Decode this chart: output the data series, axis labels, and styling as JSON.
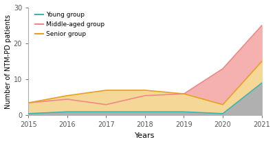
{
  "years": [
    2015,
    2016,
    2017,
    2018,
    2019,
    2020,
    2021
  ],
  "young": [
    0.5,
    1,
    1,
    1,
    1,
    0.5,
    9
  ],
  "middle_aged": [
    3.5,
    4.5,
    3,
    5.5,
    6,
    13,
    25
  ],
  "senior": [
    3.5,
    5.5,
    7,
    7,
    6,
    3,
    15
  ],
  "young_color": "#3ab5b5",
  "middle_aged_color": "#f08888",
  "senior_color": "#e8a020",
  "middle_aged_fill": "#f5b0b0",
  "senior_fill": "#f5d898",
  "young_fill": "#b0b0b0",
  "ylabel": "Number of NTM-PD patients",
  "xlabel": "Years",
  "ylim": [
    0,
    30
  ],
  "yticks": [
    0,
    10,
    20,
    30
  ],
  "legend_young": "Young group",
  "legend_middle": "Middle-aged group",
  "legend_senior": "Senior group",
  "background_color": "#ffffff"
}
